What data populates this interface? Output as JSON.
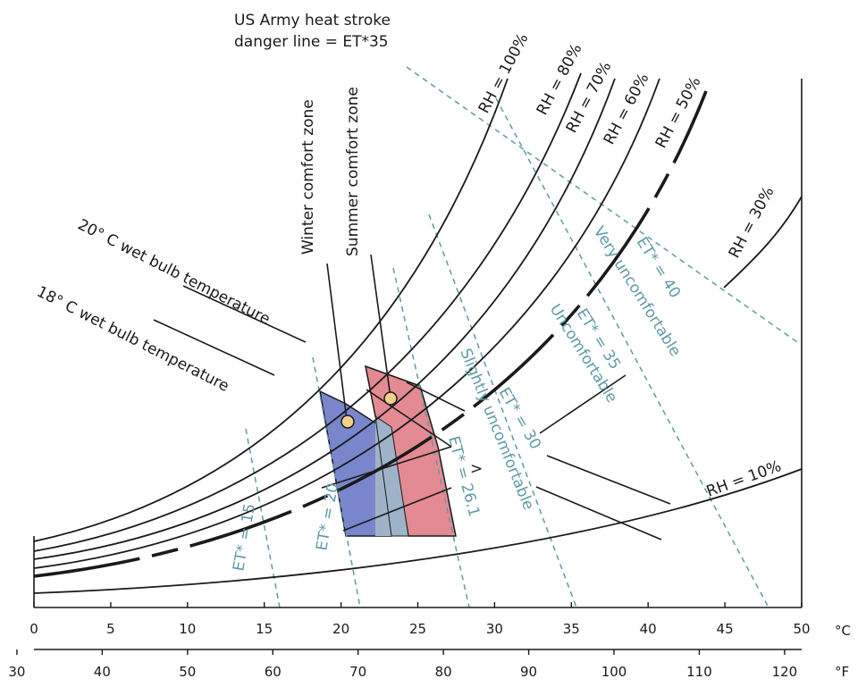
{
  "labels": {
    "army_line_1": "US Army heat stroke",
    "army_line_2": "danger line = ET*35",
    "winter_zone": "Winter comfort zone",
    "summer_zone": "Summer comfort zone",
    "wb20": "20° C wet bulb temperature",
    "wb18": "18° C wet bulb temperature",
    "very_uncomfortable": "Very uncomfortable",
    "uncomfortable": "Uncomfortable",
    "slightly_uncomfortable": "Slightly uncomfortable",
    "gt_sign": ">"
  },
  "rh_labels": {
    "rh100": "RH = 100%",
    "rh80": "RH = 80%",
    "rh70": "RH = 70%",
    "rh60": "RH = 60%",
    "rh50": "RH = 50%",
    "rh30": "RH = 30%",
    "rh10": "RH = 10%"
  },
  "et_labels": {
    "et40": "ET* = 40",
    "et35": "ET* = 35",
    "et30": "ET* = 30",
    "et26": "ET* = 26.1",
    "et20": "ET* = 20",
    "et15": "ET* = 15"
  },
  "axis_c": {
    "unit": "°C",
    "ticks": [
      "0",
      "5",
      "10",
      "15",
      "20",
      "25",
      "30",
      "35",
      "40",
      "45",
      "50"
    ]
  },
  "axis_f": {
    "unit": "°F",
    "ticks": [
      "30",
      "40",
      "50",
      "60",
      "70",
      "80",
      "90",
      "100",
      "110",
      "120"
    ]
  },
  "colors": {
    "curve": "#1a1a1a",
    "et_line": "#5f9aa6",
    "winter_zone": "#7a86cc",
    "overlap_zone": "#9fb3c8",
    "summer_zone": "#e38a92",
    "marker_fill": "#f3d08a"
  }
}
